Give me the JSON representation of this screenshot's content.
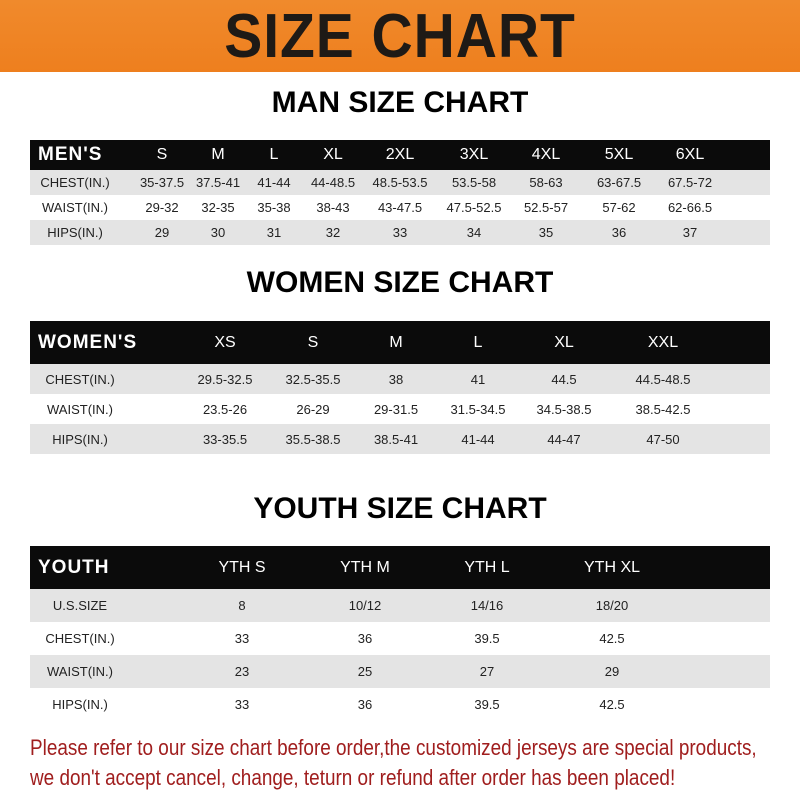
{
  "banner_title": "SIZE CHART",
  "men": {
    "title": "MAN SIZE CHART",
    "header": [
      "MEN'S",
      "S",
      "M",
      "L",
      "XL",
      "2XL",
      "3XL",
      "4XL",
      "5XL",
      "6XL"
    ],
    "rows": [
      [
        "CHEST(IN.)",
        "35-37.5",
        "37.5-41",
        "41-44",
        "44-48.5",
        "48.5-53.5",
        "53.5-58",
        "58-63",
        "63-67.5",
        "67.5-72"
      ],
      [
        "WAIST(IN.)",
        "29-32",
        "32-35",
        "35-38",
        "38-43",
        "43-47.5",
        "47.5-52.5",
        "52.5-57",
        "57-62",
        "62-66.5"
      ],
      [
        "HIPS(IN.)",
        "29",
        "30",
        "31",
        "32",
        "33",
        "34",
        "35",
        "36",
        "37"
      ]
    ]
  },
  "women": {
    "title": "WOMEN SIZE CHART",
    "header": [
      "WOMEN'S",
      "XS",
      "S",
      "M",
      "L",
      "XL",
      "XXL"
    ],
    "rows": [
      [
        "CHEST(IN.)",
        "29.5-32.5",
        "32.5-35.5",
        "38",
        "41",
        "44.5",
        "44.5-48.5"
      ],
      [
        "WAIST(IN.)",
        "23.5-26",
        "26-29",
        "29-31.5",
        "31.5-34.5",
        "34.5-38.5",
        "38.5-42.5"
      ],
      [
        "HIPS(IN.)",
        "33-35.5",
        "35.5-38.5",
        "38.5-41",
        "41-44",
        "44-47",
        "47-50"
      ]
    ]
  },
  "youth": {
    "title": "YOUTH SIZE CHART",
    "header": [
      "YOUTH",
      "YTH S",
      "YTH M",
      "YTH L",
      "YTH XL"
    ],
    "rows": [
      [
        "U.S.SIZE",
        "8",
        "10/12",
        "14/16",
        "18/20"
      ],
      [
        "CHEST(IN.)",
        "33",
        "36",
        "39.5",
        "42.5"
      ],
      [
        "WAIST(IN.)",
        "23",
        "25",
        "27",
        "29"
      ],
      [
        "HIPS(IN.)",
        "33",
        "36",
        "39.5",
        "42.5"
      ]
    ]
  },
  "note": {
    "line1": "Please refer to our size chart before order,the customized jerseys are special products,",
    "line2": "we don't accept cancel, change, teturn or refund after order has been placed!"
  },
  "colors": {
    "banner": "#f08a2c",
    "header_row": "#0b0b0b",
    "stripe": "#e4e4e4",
    "note": "#a01e1e"
  }
}
